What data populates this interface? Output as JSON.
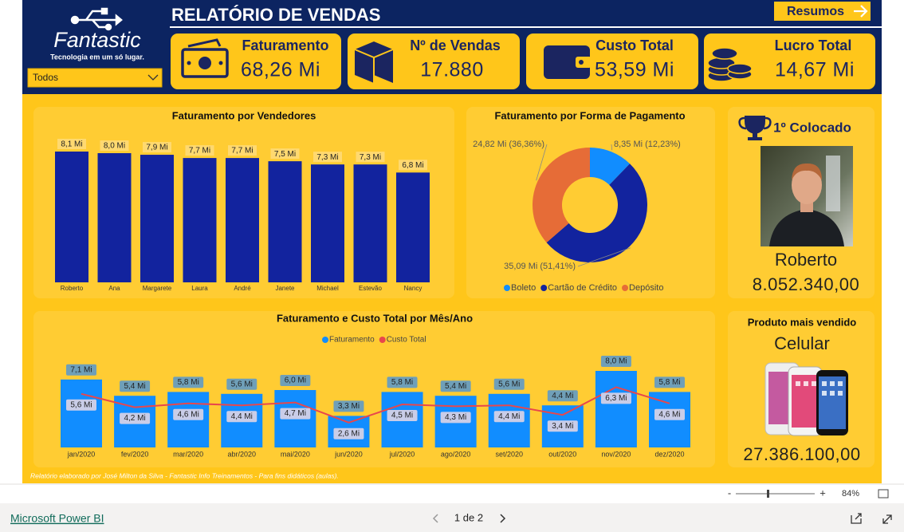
{
  "header": {
    "title": "RELATÓRIO DE VENDAS",
    "button": "Resumos",
    "logo": "Fantastic",
    "tagline": "Tecnologia em um só lugar.",
    "filter": "Todos"
  },
  "kpis": [
    {
      "label": "Faturamento",
      "value": "68,26 Mi"
    },
    {
      "label": "Nº de Vendas",
      "value": "17.880"
    },
    {
      "label": "Custo Total",
      "value": "53,59 Mi"
    },
    {
      "label": "Lucro Total",
      "value": "14,67 Mi"
    }
  ],
  "chart_data": [
    {
      "type": "bar",
      "title": "Faturamento por Vendedores",
      "categories": [
        "Roberto",
        "Ana",
        "Margarete",
        "Laura",
        "André",
        "Janete",
        "Michael",
        "Estevão",
        "Nancy"
      ],
      "values": [
        8.1,
        8.0,
        7.9,
        7.7,
        7.7,
        7.5,
        7.3,
        7.3,
        6.8
      ],
      "value_labels": [
        "8,1 Mi",
        "8,0 Mi",
        "7,9 Mi",
        "7,7 Mi",
        "7,7 Mi",
        "7,5 Mi",
        "7,3 Mi",
        "7,3 Mi",
        "6,8 Mi"
      ],
      "color": "#12239E"
    },
    {
      "type": "pie",
      "title": "Faturamento por Forma de Pagamento",
      "donut": true,
      "categories": [
        "Boleto",
        "Cartão de Crédito",
        "Depósito"
      ],
      "values": [
        8.35,
        35.09,
        24.82
      ],
      "value_labels": [
        "8,35 Mi (12,23%)",
        "35,09 Mi (51,41%)",
        "24,82 Mi (36,36%)"
      ],
      "colors": [
        "#118DFF",
        "#12239E",
        "#E66C37"
      ]
    },
    {
      "type": "combo",
      "title": "Faturamento e Custo Total por Mês/Ano",
      "categories": [
        "jan/2020",
        "fev/2020",
        "mar/2020",
        "abr/2020",
        "mai/2020",
        "jun/2020",
        "jul/2020",
        "ago/2020",
        "set/2020",
        "out/2020",
        "nov/2020",
        "dez/2020"
      ],
      "series": [
        {
          "name": "Faturamento",
          "type": "bar",
          "color": "#118DFF",
          "values": [
            7.1,
            5.4,
            5.8,
            5.6,
            6.0,
            3.3,
            5.8,
            5.4,
            5.6,
            4.4,
            8.0,
            5.8
          ],
          "value_labels": [
            "7,1 Mi",
            "5,4 Mi",
            "5,8 Mi",
            "5,6 Mi",
            "6,0 Mi",
            "3,3 Mi",
            "5,8 Mi",
            "5,4 Mi",
            "5,6 Mi",
            "4,4 Mi",
            "8,0 Mi",
            "5,8 Mi"
          ]
        },
        {
          "name": "Custo Total",
          "type": "line",
          "color": "#E8474C",
          "values": [
            5.6,
            4.2,
            4.6,
            4.4,
            4.7,
            2.6,
            4.5,
            4.3,
            4.4,
            3.4,
            6.3,
            4.6
          ],
          "value_labels": [
            "5,6 Mi",
            "4,2 Mi",
            "4,6 Mi",
            "4,4 Mi",
            "4,7 Mi",
            "2,6 Mi",
            "4,5 Mi",
            "4,3 Mi",
            "4,4 Mi",
            "3,4 Mi",
            "6,3 Mi",
            "4,6 Mi"
          ]
        }
      ]
    }
  ],
  "top_seller": {
    "heading": "1º Colocado",
    "name": "Roberto",
    "value": "8.052.340,00"
  },
  "top_product": {
    "heading": "Produto mais vendido",
    "name": "Celular",
    "value": "27.386.100,00"
  },
  "footer": "Relatório elaborado por José Milton da Silva - Fantastic Info Treinamentos - Para fins didáticos (aulas).",
  "statusbar": {
    "zoom": "84%",
    "app": "Microsoft Power BI",
    "page": "1 de 2"
  }
}
